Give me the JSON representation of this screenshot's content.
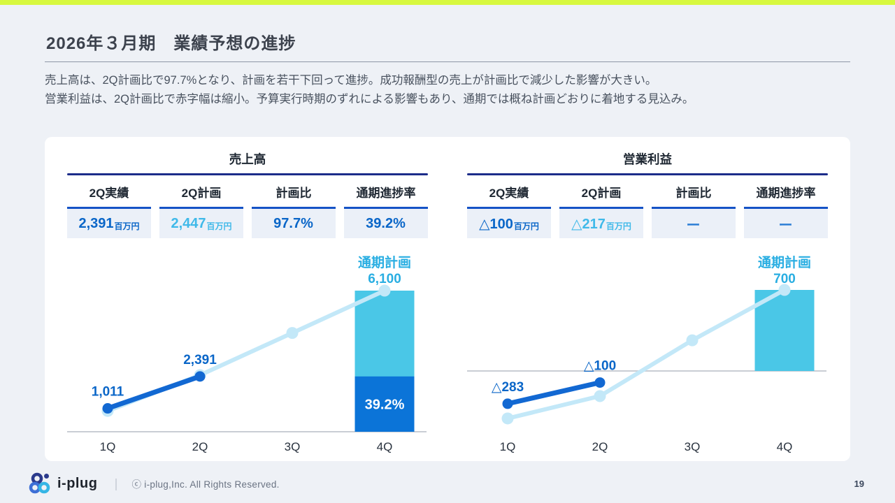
{
  "slide": {
    "title": "2026年３月期　業績予想の進捗",
    "description_lines": [
      "売上高は、2Q計画比で97.7%となり、計画を若干下回って進捗。成功報酬型の売上が計画比で減少した影響が大きい。",
      "営業利益は、2Q計画比で赤字幅は縮小。予算実行時期のずれによる影響もあり、通期では概ね計画どおりに着地する見込み。"
    ],
    "page_number": "19"
  },
  "footer": {
    "logo_text": "i-plug",
    "separator": "｜",
    "copyright": "ⓒ i-plug,Inc. All Rights Reserved."
  },
  "colors": {
    "accent_lime": "#D7F83F",
    "title_line_navy": "#1C2C8A",
    "cell_border_blue": "#1553C6",
    "value_blue": "#0A66C8",
    "value_cyan": "#3FB9E9",
    "dash_blue": "#2E7FD6",
    "bar_cyan": "#4AC7E7",
    "bar_progress_blue": "#0B74D8",
    "plan_line": "#C3E8F8",
    "actual_line": "#1268D2",
    "annotation_cyan": "#29AEE2",
    "axis_gray": "#C9CDD4",
    "category_text": "#29323E"
  },
  "panels": [
    {
      "title": "売上高",
      "columns": [
        "2Q実績",
        "2Q計画",
        "計画比",
        "通期進捗率"
      ],
      "values": [
        {
          "text": "2,391",
          "suffix": "百万円",
          "style": "actual"
        },
        {
          "text": "2,447",
          "suffix": "百万円",
          "style": "plan"
        },
        {
          "text": "97.7%",
          "suffix": "",
          "style": "actual"
        },
        {
          "text": "39.2%",
          "suffix": "",
          "style": "actual"
        }
      ],
      "chart_data": {
        "type": "line+bar",
        "title": "売上高",
        "unit": "百万円",
        "categories": [
          "1Q",
          "2Q",
          "3Q",
          "4Q"
        ],
        "series": [
          {
            "name": "actual",
            "type": "line",
            "role": "actual",
            "values": [
              1011,
              2391,
              null,
              null
            ],
            "point_labels": [
              "1,011",
              "2,391",
              null,
              null
            ]
          },
          {
            "name": "plan",
            "type": "line",
            "role": "plan",
            "values": [
              900,
              2447,
              4270,
              6100
            ],
            "point_labels": [
              null,
              null,
              null,
              null
            ]
          }
        ],
        "bar": {
          "category": "4Q",
          "total": 6100,
          "progress": 2391,
          "progress_label": "39.2%"
        },
        "annotation": [
          "通期計画",
          "6,100"
        ],
        "ylim": [
          0,
          6500
        ],
        "grid": false,
        "legend": "none"
      }
    },
    {
      "title": "営業利益",
      "columns": [
        "2Q実績",
        "2Q計画",
        "計画比",
        "通期進捗率"
      ],
      "values": [
        {
          "text": "△100",
          "suffix": "百万円",
          "style": "actual"
        },
        {
          "text": "△217",
          "suffix": "百万円",
          "style": "plan"
        },
        {
          "text": "ー",
          "suffix": "",
          "style": "dash"
        },
        {
          "text": "ー",
          "suffix": "",
          "style": "dash"
        }
      ],
      "chart_data": {
        "type": "line+bar",
        "title": "営業利益",
        "unit": "百万円",
        "categories": [
          "1Q",
          "2Q",
          "3Q",
          "4Q"
        ],
        "series": [
          {
            "name": "actual",
            "type": "line",
            "role": "actual",
            "values": [
              -283,
              -100,
              null,
              null
            ],
            "point_labels": [
              "△283",
              "△100",
              null,
              null
            ]
          },
          {
            "name": "plan",
            "type": "line",
            "role": "plan",
            "values": [
              -410,
              -217,
              265,
              700
            ],
            "point_labels": [
              null,
              null,
              null,
              null
            ]
          }
        ],
        "bar": {
          "category": "4Q",
          "total": 700,
          "progress": null,
          "progress_label": null
        },
        "annotation": [
          "通期計画",
          "700"
        ],
        "ylim": [
          -450,
          700
        ],
        "grid": false,
        "legend": "none"
      }
    }
  ]
}
